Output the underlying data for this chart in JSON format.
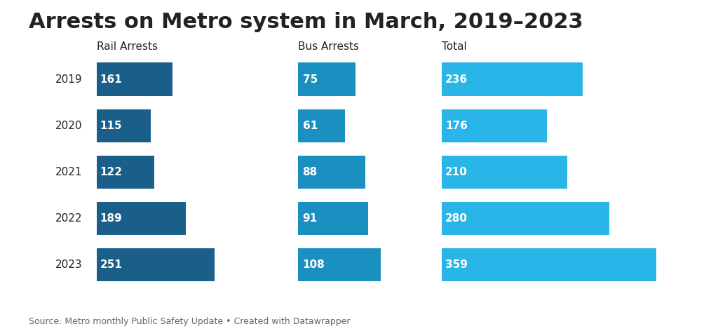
{
  "title": "Arrests on Metro system in March, 2019–2023",
  "years": [
    2019,
    2020,
    2021,
    2022,
    2023
  ],
  "rail_arrests": [
    161,
    115,
    122,
    189,
    251
  ],
  "bus_arrests": [
    75,
    61,
    88,
    91,
    108
  ],
  "totals": [
    236,
    176,
    210,
    280,
    359
  ],
  "rail_color": "#1a5f8a",
  "bus_color": "#1a90c0",
  "total_color": "#29b5e8",
  "subtitle_rail": "Rail Arrests",
  "subtitle_bus": "Bus Arrests",
  "subtitle_total": "Total",
  "footnote": "Source: Metro monthly Public Safety Update • Created with Datawrapper",
  "background_color": "#ffffff",
  "text_color": "#222222",
  "bar_text_color": "#ffffff",
  "title_fontsize": 22,
  "subtitle_fontsize": 11,
  "label_fontsize": 11,
  "footnote_fontsize": 9,
  "year_fontsize": 11,
  "bar_height": 0.72,
  "rail_max": 360,
  "bus_max": 145,
  "total_max": 420
}
